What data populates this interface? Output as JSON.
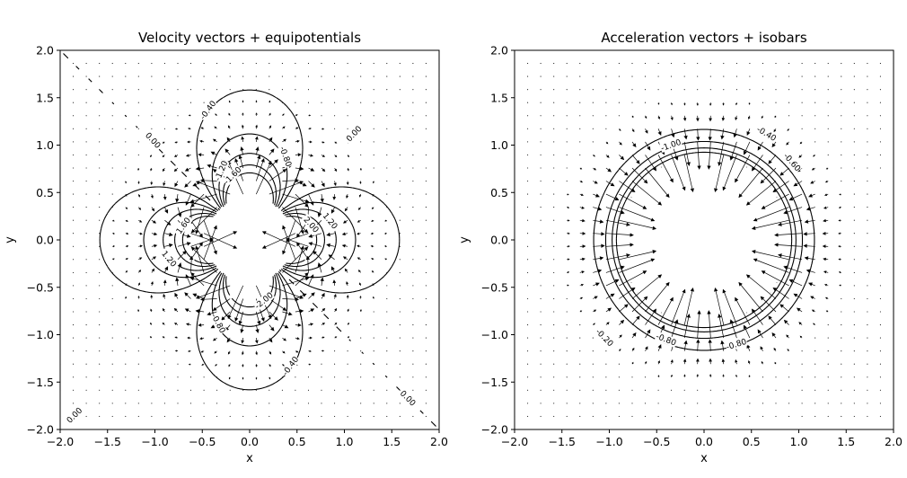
{
  "chart_data": [
    {
      "type": "vector-field-contour",
      "title": "Velocity vectors + equipotentials",
      "xlabel": "x",
      "ylabel": "y",
      "xlim": [
        -2,
        2
      ],
      "ylim": [
        -2,
        2
      ],
      "xticks": [
        "−2.0",
        "−1.5",
        "−1.0",
        "−0.5",
        "0.0",
        "0.5",
        "1.0",
        "1.5",
        "2.0"
      ],
      "yticks": [
        "2.0",
        "1.5",
        "1.0",
        "0.5",
        "0.0",
        "−0.5",
        "−1.0",
        "−1.5",
        "−2.0"
      ],
      "grid": false,
      "field": "equipotential phi = (x^2 - y^2)/r^4 (doublet quadrupole), vectors = grad phi",
      "contour_levels": [
        -2.0,
        -1.6,
        -1.2,
        -0.8,
        -0.4,
        0.0,
        0.4,
        0.8,
        1.2,
        1.6,
        2.0
      ],
      "masked_radius": 0.45,
      "contour_labels": [
        {
          "text": "0.00",
          "x": -1.02,
          "y": 1.05
        },
        {
          "text": "0.00",
          "x": 1.1,
          "y": 1.12
        },
        {
          "text": "0.00",
          "x": 1.67,
          "y": -1.67
        },
        {
          "text": "0.00",
          "x": -1.85,
          "y": -1.85
        },
        {
          "text": "-0.40",
          "x": -0.44,
          "y": 1.37
        },
        {
          "text": "-0.40",
          "x": 0.43,
          "y": -1.33
        },
        {
          "text": "-0.80",
          "x": 0.38,
          "y": 0.88
        },
        {
          "text": "-0.80",
          "x": -0.33,
          "y": -0.88
        },
        {
          "text": "1.20",
          "x": 0.85,
          "y": 0.2
        },
        {
          "text": "1.20",
          "x": -0.85,
          "y": -0.2
        },
        {
          "text": "-1.20",
          "x": -0.3,
          "y": 0.73
        },
        {
          "text": "-1.60",
          "x": -0.18,
          "y": 0.68
        },
        {
          "text": "-2.00",
          "x": 0.15,
          "y": -0.64
        },
        {
          "text": "1.60",
          "x": -0.7,
          "y": 0.15
        },
        {
          "text": "2.00",
          "x": 0.65,
          "y": 0.16
        }
      ]
    },
    {
      "type": "vector-field-contour",
      "title": "Acceleration vectors + isobars",
      "xlabel": "x",
      "ylabel": "y",
      "xlim": [
        -2,
        2
      ],
      "ylim": [
        -2,
        2
      ],
      "xticks": [
        "−2.0",
        "−1.5",
        "−1.0",
        "−0.5",
        "0.0",
        "0.5",
        "1.0",
        "1.5",
        "2.0"
      ],
      "yticks": [
        "2.0",
        "1.5",
        "1.0",
        "0.5",
        "0.0",
        "−0.5",
        "−1.0",
        "−1.5",
        "−2.0"
      ],
      "grid": false,
      "field": "isobars p = -1/(2 r^6), vectors = radial acceleration toward the origin",
      "contour_levels": [
        -0.2,
        -0.4,
        -0.6,
        -0.8,
        -1.0,
        -1.2,
        -1.4,
        -1.6,
        -1.8,
        -2.0,
        -2.2,
        -2.4,
        -2.6,
        -2.8
      ],
      "masked_radius": 0.9,
      "contour_labels": [
        {
          "text": "-0.20",
          "x": -1.05,
          "y": -1.03
        },
        {
          "text": "-0.40",
          "x": 0.66,
          "y": 1.12
        },
        {
          "text": "-0.60",
          "x": 0.93,
          "y": 0.82
        },
        {
          "text": "-0.80",
          "x": -0.4,
          "y": -1.05
        },
        {
          "text": "-0.80",
          "x": 0.34,
          "y": -1.1
        },
        {
          "text": "-1.00",
          "x": -0.35,
          "y": 1.0
        }
      ]
    }
  ]
}
